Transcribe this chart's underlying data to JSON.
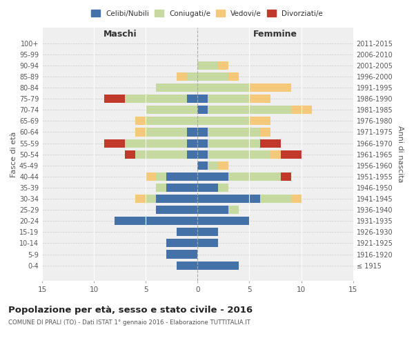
{
  "age_groups": [
    "100+",
    "95-99",
    "90-94",
    "85-89",
    "80-84",
    "75-79",
    "70-74",
    "65-69",
    "60-64",
    "55-59",
    "50-54",
    "45-49",
    "40-44",
    "35-39",
    "30-34",
    "25-29",
    "20-24",
    "15-19",
    "10-14",
    "5-9",
    "0-4"
  ],
  "birth_years": [
    "≤ 1915",
    "1916-1920",
    "1921-1925",
    "1926-1930",
    "1931-1935",
    "1936-1940",
    "1941-1945",
    "1946-1950",
    "1951-1955",
    "1956-1960",
    "1961-1965",
    "1966-1970",
    "1971-1975",
    "1976-1980",
    "1981-1985",
    "1986-1990",
    "1991-1995",
    "1996-2000",
    "2001-2005",
    "2006-2010",
    "2011-2015"
  ],
  "maschi": {
    "celibi": [
      0,
      0,
      0,
      0,
      0,
      1,
      0,
      0,
      1,
      1,
      1,
      0,
      3,
      3,
      4,
      4,
      8,
      2,
      3,
      3,
      2
    ],
    "coniugati": [
      0,
      0,
      0,
      1,
      4,
      6,
      5,
      5,
      4,
      6,
      5,
      0,
      1,
      1,
      1,
      0,
      0,
      0,
      0,
      0,
      0
    ],
    "vedovi": [
      0,
      0,
      0,
      1,
      0,
      0,
      0,
      1,
      1,
      0,
      0,
      0,
      1,
      0,
      1,
      0,
      0,
      0,
      0,
      0,
      0
    ],
    "divorziati": [
      0,
      0,
      0,
      0,
      0,
      2,
      0,
      0,
      0,
      2,
      1,
      0,
      0,
      0,
      0,
      0,
      0,
      0,
      0,
      0,
      0
    ]
  },
  "femmine": {
    "nubili": [
      0,
      0,
      0,
      0,
      0,
      1,
      1,
      0,
      1,
      1,
      1,
      1,
      3,
      2,
      6,
      3,
      5,
      2,
      2,
      0,
      4
    ],
    "coniugate": [
      0,
      0,
      2,
      3,
      5,
      4,
      8,
      5,
      5,
      5,
      6,
      1,
      5,
      1,
      3,
      1,
      0,
      0,
      0,
      0,
      0
    ],
    "vedove": [
      0,
      0,
      1,
      1,
      4,
      2,
      2,
      2,
      1,
      0,
      1,
      1,
      0,
      0,
      1,
      0,
      0,
      0,
      0,
      0,
      0
    ],
    "divorziate": [
      0,
      0,
      0,
      0,
      0,
      0,
      0,
      0,
      0,
      2,
      2,
      0,
      1,
      0,
      0,
      0,
      0,
      0,
      0,
      0,
      0
    ]
  },
  "color_celibi": "#4472a8",
  "color_coniugati": "#c5d9a0",
  "color_vedovi": "#f5c97a",
  "color_divorziati": "#c0392b",
  "xlim": 15,
  "title": "Popolazione per età, sesso e stato civile - 2016",
  "subtitle": "COMUNE DI PRALI (TO) - Dati ISTAT 1° gennaio 2016 - Elaborazione TUTTITALIA.IT",
  "ylabel_left": "Fasce di età",
  "ylabel_right": "Anni di nascita",
  "xlabel_left": "Maschi",
  "xlabel_right": "Femmine",
  "bg_color": "#efefef"
}
